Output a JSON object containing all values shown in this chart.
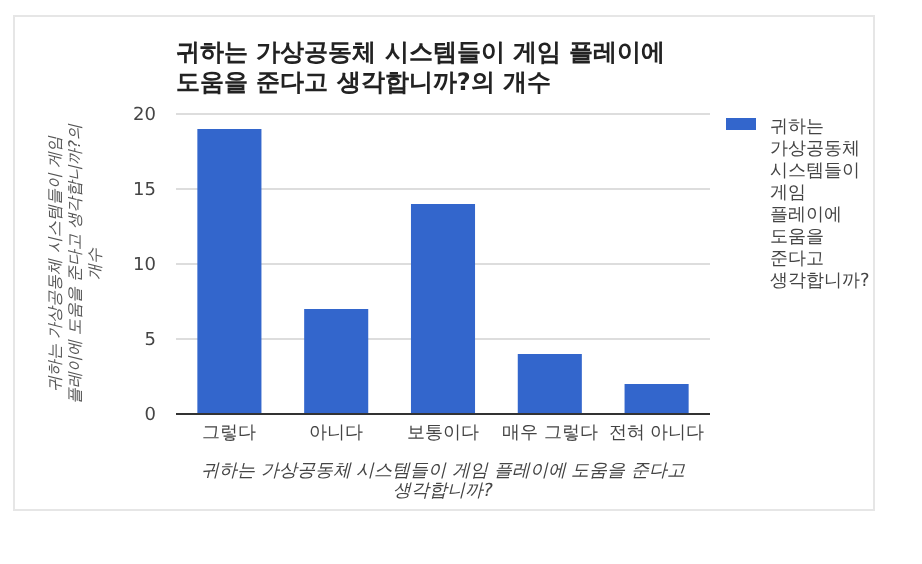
{
  "chart_data": {
    "type": "bar",
    "title": "귀하는 가상공동체 시스템들이 게임 플레이에 도움을 준다고 생각합니까?의 개수",
    "xlabel": "귀하는 가상공동체 시스템들이 게임 플레이에 도움을 준다고 생각합니까?",
    "ylabel": "귀하는 가상공동체 시스템들이 게임 플레이에 도움을 준다고 생각합니까?의 개수",
    "categories": [
      "그렇다",
      "아니다",
      "보통이다",
      "매우 그렇다",
      "전혀 아니다"
    ],
    "series": [
      {
        "name": "귀하는 가상공동체 시스템들이 게임 플레이에 도움을 준다고 생각합니까?",
        "color": "#3366cc",
        "values": [
          19,
          7,
          14,
          4,
          2
        ]
      }
    ],
    "ylim": [
      0,
      20
    ],
    "yticks": [
      0,
      5,
      10,
      15,
      20
    ],
    "grid": "y",
    "legend": "right"
  }
}
